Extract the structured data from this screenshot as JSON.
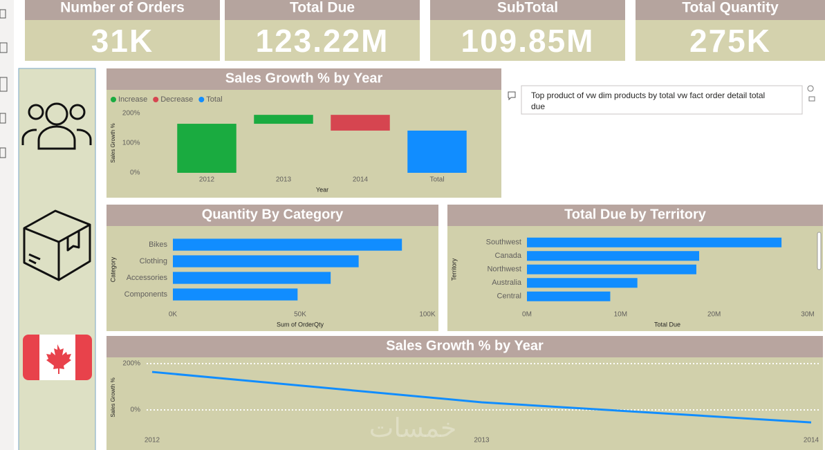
{
  "cards": [
    {
      "title": "Number of Orders",
      "value": "31K"
    },
    {
      "title": "Total Due",
      "value": "123.22M"
    },
    {
      "title": "SubTotal",
      "value": "109.85M"
    },
    {
      "title": "Total Quantity",
      "value": "275K"
    }
  ],
  "qa": {
    "text": "Top product of vw dim products by total vw fact order detail total due"
  },
  "watermark": "خمسات",
  "chart_data": [
    {
      "type": "waterfall",
      "title": "Sales Growth % by Year",
      "legend_items": [
        {
          "name": "Increase",
          "color": "#1aab40"
        },
        {
          "name": "Decrease",
          "color": "#d64550"
        },
        {
          "name": "Total",
          "color": "#118dff"
        }
      ],
      "legend": "top-left",
      "categories": [
        "2012",
        "2013",
        "2014",
        "Total"
      ],
      "values": [
        165,
        30,
        -53,
        142
      ],
      "ylim": [
        0,
        200
      ],
      "yticks": [
        {
          "value": 0,
          "label": "0%"
        },
        {
          "value": 100,
          "label": "100%"
        },
        {
          "value": 200,
          "label": "200%"
        }
      ],
      "x_label": "Year",
      "y_label": "Sales Growth %"
    },
    {
      "type": "hbar",
      "title": "Quantity By Category",
      "categories": [
        "Bikes",
        "Clothing",
        "Accessories",
        "Components"
      ],
      "values": [
        90000,
        73000,
        62000,
        49000
      ],
      "color": "#118dff",
      "xlim": [
        0,
        100000
      ],
      "xticks": [
        {
          "value": 0,
          "label": "0K"
        },
        {
          "value": 50000,
          "label": "50K"
        },
        {
          "value": 100000,
          "label": "100K"
        }
      ],
      "x_label": "Sum of OrderQty",
      "y_label": "Category"
    },
    {
      "type": "hbar",
      "title": "Total Due by Territory",
      "categories": [
        "Southwest",
        "Canada",
        "Northwest",
        "Australia",
        "Central"
      ],
      "values": [
        27200000,
        18400000,
        18100000,
        11800000,
        8900000
      ],
      "color": "#118dff",
      "xlim": [
        0,
        30000000
      ],
      "xticks": [
        {
          "value": 0,
          "label": "0M"
        },
        {
          "value": 10000000,
          "label": "10M"
        },
        {
          "value": 20000000,
          "label": "20M"
        },
        {
          "value": 30000000,
          "label": "30M"
        }
      ],
      "x_label": "Total Due",
      "y_label": "Territory"
    },
    {
      "type": "line",
      "title": "Sales Growth % by Year",
      "categories": [
        "2012",
        "2013",
        "2014"
      ],
      "values": [
        164,
        33,
        -54
      ],
      "color": "#118dff",
      "ylim": [
        -80,
        220
      ],
      "yticks": [
        {
          "value": 0,
          "label": "0%"
        },
        {
          "value": 200,
          "label": "200%"
        }
      ],
      "grid": true,
      "y_label": "Sales Growth %"
    }
  ]
}
